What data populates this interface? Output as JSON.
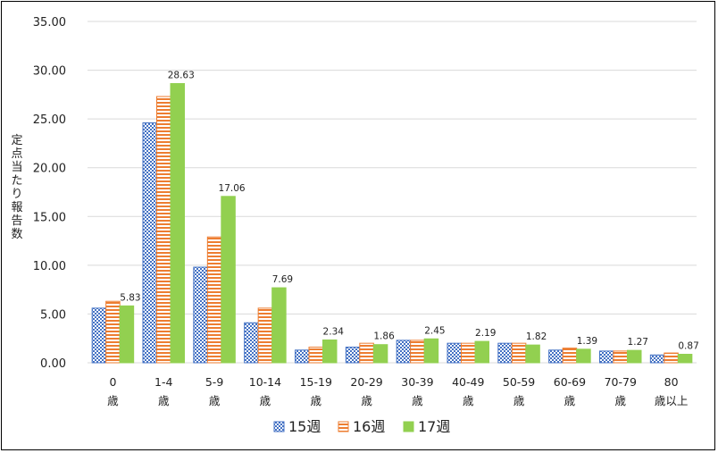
{
  "chart_data": {
    "type": "bar",
    "title": "",
    "xlabel": "",
    "ylabel": "定点当たり報告数",
    "ylim": [
      0,
      35
    ],
    "yticks": [
      "0.00",
      "5.00",
      "10.00",
      "15.00",
      "20.00",
      "25.00",
      "30.00",
      "35.00"
    ],
    "grid": true,
    "legend_position": "bottom",
    "categories": [
      [
        "0",
        "歳"
      ],
      [
        "1-4",
        "歳"
      ],
      [
        "5-9",
        "歳"
      ],
      [
        "10-14",
        "歳"
      ],
      [
        "15-19",
        "歳"
      ],
      [
        "20-29",
        "歳"
      ],
      [
        "30-39",
        "歳"
      ],
      [
        "40-49",
        "歳"
      ],
      [
        "50-59",
        "歳"
      ],
      [
        "60-69",
        "歳"
      ],
      [
        "70-79",
        "歳"
      ],
      [
        "80",
        "歳以上"
      ]
    ],
    "series": [
      {
        "name": "15週",
        "color": "#4472c4",
        "pattern": "dots",
        "values": [
          5.6,
          24.6,
          9.8,
          4.1,
          1.3,
          1.6,
          2.3,
          2.0,
          2.0,
          1.3,
          1.2,
          0.8
        ]
      },
      {
        "name": "16週",
        "color": "#ed7d31",
        "pattern": "horizontal-lines",
        "values": [
          6.3,
          27.3,
          12.9,
          5.6,
          1.6,
          2.0,
          2.3,
          2.0,
          2.0,
          1.5,
          1.2,
          1.0
        ]
      },
      {
        "name": "17週",
        "color": "#92d050",
        "pattern": "solid",
        "values": [
          5.83,
          28.63,
          17.06,
          7.69,
          2.34,
          1.86,
          2.45,
          2.19,
          1.82,
          1.39,
          1.27,
          0.87
        ],
        "labels": [
          "5.83",
          "28.63",
          "17.06",
          "7.69",
          "2.34",
          "1.86",
          "2.45",
          "2.19",
          "1.82",
          "1.39",
          "1.27",
          "0.87"
        ]
      }
    ]
  }
}
